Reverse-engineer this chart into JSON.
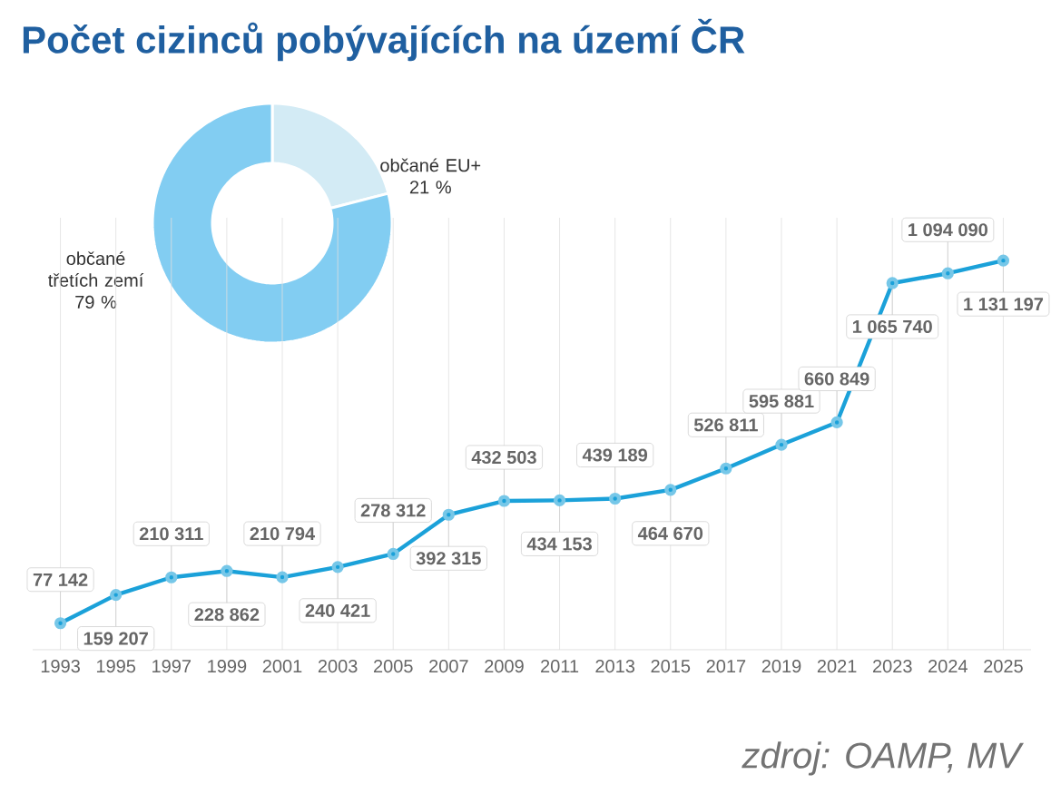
{
  "chart_data": [
    {
      "type": "donut",
      "title": "Počet cizinců pobývajících na území ČR",
      "categories": [
        "občané EU+",
        "občané třetích zemí"
      ],
      "values": [
        21,
        79
      ],
      "colors": [
        "#d3ebf5",
        "#82cdf2"
      ],
      "value_labels": [
        "21 %",
        "79 %"
      ]
    },
    {
      "type": "line",
      "categories": [
        "1993",
        "1995",
        "1997",
        "1999",
        "2001",
        "2003",
        "2005",
        "2007",
        "2009",
        "2011",
        "2013",
        "2015",
        "2017",
        "2019",
        "2021",
        "2023",
        "2024",
        "2025"
      ],
      "values": [
        77142,
        159207,
        210311,
        228862,
        210794,
        240421,
        278312,
        392315,
        432503,
        434153,
        439189,
        464670,
        526811,
        595881,
        660849,
        1065740,
        1094090,
        1131197
      ],
      "value_labels": [
        "77 142",
        "159 207",
        "210 311",
        "228 862",
        "210 794",
        "240 421",
        "278 312",
        "392 315",
        "432 503",
        "434 153",
        "439 189",
        "464 670",
        "526 811",
        "595 881",
        "660 849",
        "1 065 740",
        "1 094 090",
        "1 131 197"
      ],
      "color": "#1ba1d9",
      "marker": "circle",
      "grid": "x",
      "tick_labels": "x",
      "annotations": [
        "zdroj: OAMP, MV"
      ]
    }
  ]
}
